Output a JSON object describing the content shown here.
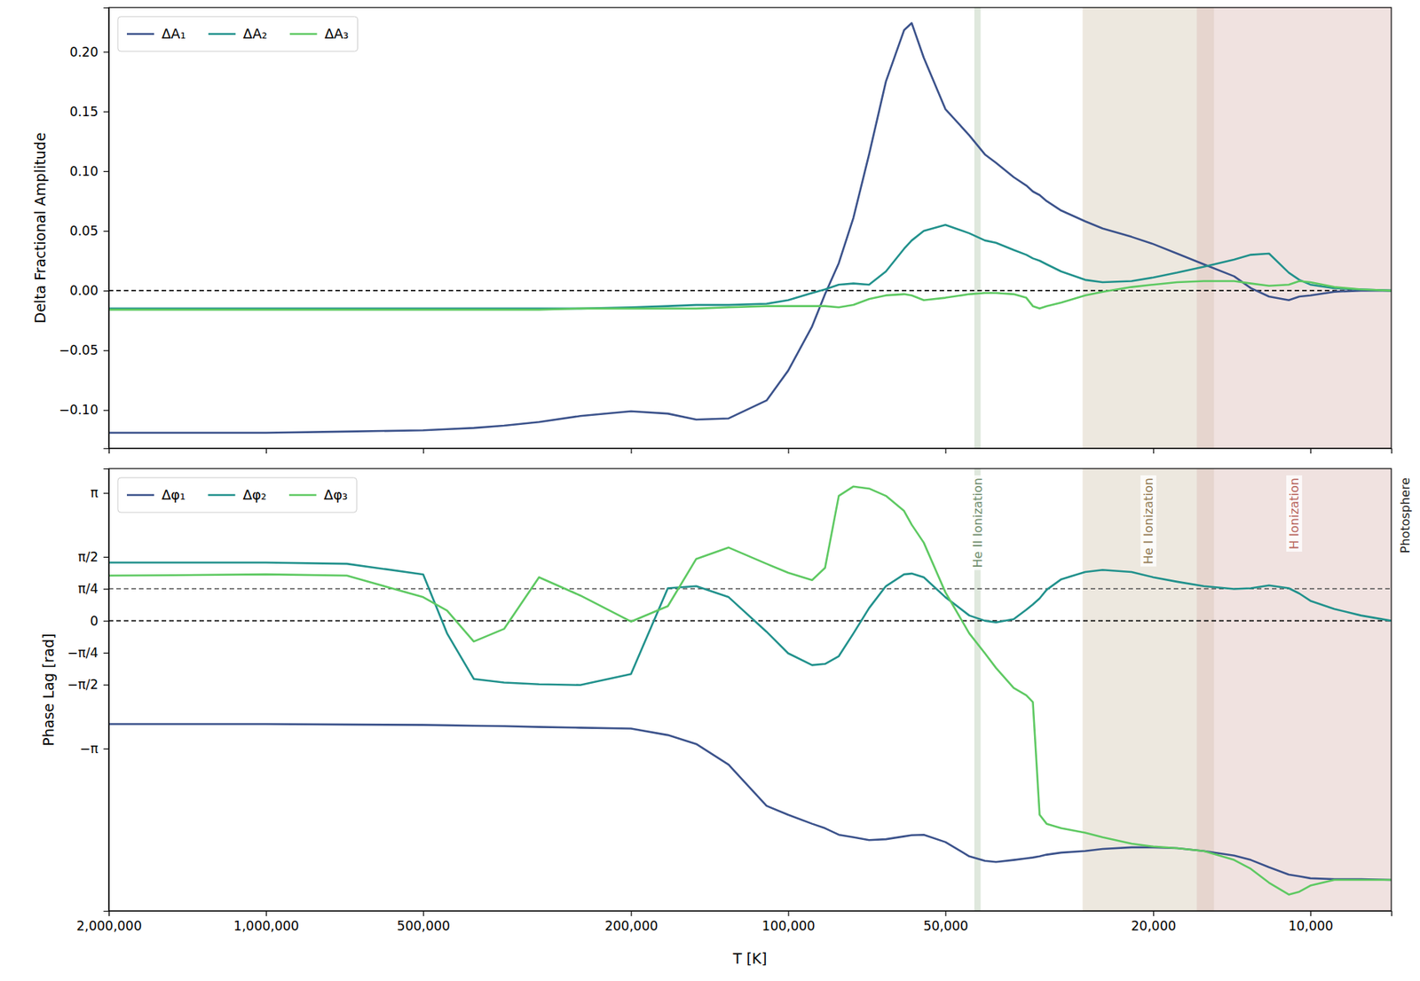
{
  "chart_data": [
    {
      "type": "line",
      "ylabel": "Delta Fractional Amplitude",
      "log": "x",
      "grid": false,
      "legend": "upper left",
      "tick_labels": "y",
      "xlim": [
        2000000,
        7000
      ],
      "xticks": [
        2000000,
        1000000,
        500000,
        200000,
        100000,
        50000,
        20000,
        10000
      ],
      "ylim": [
        -0.132,
        0.237
      ],
      "yticks": [
        {
          "value": -0.1,
          "label": "−0.10"
        },
        {
          "value": -0.05,
          "label": "−0.05"
        },
        {
          "value": 0,
          "label": "0.00"
        },
        {
          "value": 0.05,
          "label": "0.05"
        },
        {
          "value": 0.1,
          "label": "0.10"
        },
        {
          "value": 0.15,
          "label": "0.15"
        },
        {
          "value": 0.2,
          "label": "0.20"
        }
      ],
      "reference_lines": [
        0
      ],
      "regions": [
        {
          "range": [
            44000,
            42800
          ]
        },
        {
          "range": [
            27300,
            15300
          ]
        },
        {
          "range": [
            16500,
            7000
          ]
        }
      ],
      "x": [
        2000000,
        1500000,
        1000000,
        700000,
        500000,
        450000,
        400000,
        350000,
        300000,
        250000,
        200000,
        170000,
        150000,
        130000,
        110000,
        100000,
        90000,
        85000,
        80000,
        75000,
        70000,
        65000,
        60000,
        58000,
        55000,
        50000,
        45000,
        42000,
        40000,
        37000,
        35000,
        34000,
        33000,
        32000,
        30000,
        27000,
        25000,
        22000,
        20000,
        18000,
        16000,
        14000,
        13000,
        12000,
        11000,
        10500,
        10000,
        9000,
        8000,
        7000
      ],
      "series": [
        {
          "name": "ΔA₁",
          "color": "#3b528b",
          "values": [
            -0.119,
            -0.119,
            -0.119,
            -0.118,
            -0.117,
            -0.116,
            -0.115,
            -0.113,
            -0.11,
            -0.105,
            -0.101,
            -0.103,
            -0.108,
            -0.107,
            -0.092,
            -0.067,
            -0.03,
            -0.003,
            0.023,
            0.061,
            0.114,
            0.175,
            0.218,
            0.224,
            0.195,
            0.152,
            0.13,
            0.114,
            0.107,
            0.095,
            0.088,
            0.083,
            0.08,
            0.075,
            0.067,
            0.058,
            0.052,
            0.045,
            0.039,
            0.031,
            0.022,
            0.012,
            0.002,
            -0.005,
            -0.008,
            -0.005,
            -0.004,
            -0.001,
            0.0,
            0.0
          ]
        },
        {
          "name": "ΔA₂",
          "color": "#21918c",
          "values": [
            -0.015,
            -0.015,
            -0.015,
            -0.015,
            -0.015,
            -0.015,
            -0.015,
            -0.015,
            -0.015,
            -0.015,
            -0.014,
            -0.013,
            -0.012,
            -0.012,
            -0.011,
            -0.008,
            -0.002,
            0.001,
            0.005,
            0.006,
            0.005,
            0.016,
            0.035,
            0.042,
            0.05,
            0.055,
            0.048,
            0.042,
            0.04,
            0.034,
            0.03,
            0.027,
            0.025,
            0.022,
            0.016,
            0.009,
            0.007,
            0.008,
            0.011,
            0.015,
            0.02,
            0.026,
            0.03,
            0.031,
            0.015,
            0.009,
            0.005,
            0.002,
            0.001,
            0.0
          ]
        },
        {
          "name": "ΔA₃",
          "color": "#5ec962",
          "values": [
            -0.016,
            -0.016,
            -0.016,
            -0.016,
            -0.016,
            -0.016,
            -0.016,
            -0.016,
            -0.016,
            -0.015,
            -0.015,
            -0.015,
            -0.015,
            -0.014,
            -0.013,
            -0.013,
            -0.013,
            -0.013,
            -0.014,
            -0.012,
            -0.007,
            -0.004,
            -0.003,
            -0.004,
            -0.008,
            -0.006,
            -0.003,
            -0.002,
            -0.002,
            -0.003,
            -0.006,
            -0.013,
            -0.015,
            -0.013,
            -0.01,
            -0.004,
            -0.001,
            0.003,
            0.005,
            0.007,
            0.008,
            0.008,
            0.006,
            0.004,
            0.005,
            0.008,
            0.007,
            0.003,
            0.001,
            0.0
          ]
        }
      ]
    },
    {
      "type": "line",
      "xlabel": "T [K]",
      "ylabel": "Phase Lag [rad]",
      "log": "x",
      "grid": false,
      "legend": "upper left",
      "xlim": [
        2000000,
        7000
      ],
      "xticks": [
        {
          "value": 2000000,
          "label": "2,000,000"
        },
        {
          "value": 1000000,
          "label": "1,000,000"
        },
        {
          "value": 500000,
          "label": "500,000"
        },
        {
          "value": 200000,
          "label": "200,000"
        },
        {
          "value": 100000,
          "label": "100,000"
        },
        {
          "value": 50000,
          "label": "50,000"
        },
        {
          "value": 20000,
          "label": "20,000"
        },
        {
          "value": 10000,
          "label": "10,000"
        }
      ],
      "ylim": [
        -7.13,
        3.74
      ],
      "yticks": [
        {
          "value": -3.14159,
          "label": "−π"
        },
        {
          "value": -1.5708,
          "label": "−π/2"
        },
        {
          "value": -0.7854,
          "label": "−π/4"
        },
        0,
        {
          "value": 0.7854,
          "label": "π/4"
        },
        {
          "value": 1.5708,
          "label": "π/2"
        },
        {
          "value": 3.14159,
          "label": "π"
        }
      ],
      "reference_lines": [
        0,
        0.7854
      ],
      "regions": [
        {
          "label": "He II Ionization",
          "range": [
            44000,
            42800
          ]
        },
        {
          "label": "He I Ionization",
          "range": [
            27300,
            15300
          ]
        },
        {
          "label": "H Ionization",
          "range": [
            16500,
            7000
          ]
        }
      ],
      "annotations": [
        {
          "text": "Photosphere",
          "x": 7000
        }
      ],
      "x": [
        2000000,
        1500000,
        1000000,
        700000,
        500000,
        450000,
        400000,
        350000,
        300000,
        250000,
        200000,
        170000,
        150000,
        130000,
        110000,
        100000,
        90000,
        85000,
        80000,
        75000,
        70000,
        65000,
        60000,
        58000,
        55000,
        50000,
        45000,
        42000,
        40000,
        37000,
        35000,
        34000,
        33000,
        32000,
        30000,
        27000,
        25000,
        22000,
        20000,
        18000,
        16000,
        14000,
        13000,
        12000,
        11000,
        10500,
        10000,
        9000,
        8000,
        7000
      ],
      "series": [
        {
          "name": "Δφ₁",
          "color": "#3b528b",
          "values": [
            -2.54,
            -2.54,
            -2.54,
            -2.55,
            -2.56,
            -2.57,
            -2.58,
            -2.59,
            -2.61,
            -2.63,
            -2.65,
            -2.81,
            -3.03,
            -3.54,
            -4.55,
            -4.77,
            -4.99,
            -5.1,
            -5.26,
            -5.32,
            -5.39,
            -5.37,
            -5.3,
            -5.27,
            -5.26,
            -5.44,
            -5.79,
            -5.9,
            -5.93,
            -5.88,
            -5.84,
            -5.82,
            -5.79,
            -5.75,
            -5.7,
            -5.66,
            -5.61,
            -5.57,
            -5.57,
            -5.59,
            -5.66,
            -5.77,
            -5.88,
            -6.06,
            -6.24,
            -6.28,
            -6.33,
            -6.35,
            -6.35,
            -6.37
          ]
        },
        {
          "name": "Δφ₂",
          "color": "#21918c",
          "values": [
            1.43,
            1.43,
            1.43,
            1.4,
            1.14,
            -0.31,
            -1.43,
            -1.52,
            -1.56,
            -1.58,
            -1.31,
            0.8,
            0.85,
            0.58,
            -0.27,
            -0.8,
            -1.09,
            -1.06,
            -0.87,
            -0.31,
            0.31,
            0.85,
            1.14,
            1.16,
            1.07,
            0.58,
            0.13,
            0.0,
            -0.04,
            0.04,
            0.27,
            0.4,
            0.55,
            0.76,
            1.02,
            1.2,
            1.25,
            1.2,
            1.07,
            0.96,
            0.85,
            0.78,
            0.8,
            0.87,
            0.8,
            0.67,
            0.49,
            0.29,
            0.13,
            0.0
          ]
        },
        {
          "name": "Δφ₃",
          "color": "#5ec962",
          "values": [
            1.11,
            1.12,
            1.14,
            1.11,
            0.58,
            0.25,
            -0.51,
            -0.2,
            1.07,
            0.62,
            -0.02,
            0.36,
            1.52,
            1.8,
            1.4,
            1.18,
            1.0,
            1.3,
            3.07,
            3.3,
            3.25,
            3.07,
            2.7,
            2.36,
            1.92,
            0.7,
            -0.31,
            -0.8,
            -1.16,
            -1.65,
            -1.83,
            -2.0,
            -4.77,
            -4.99,
            -5.1,
            -5.21,
            -5.32,
            -5.48,
            -5.55,
            -5.59,
            -5.66,
            -5.88,
            -6.1,
            -6.44,
            -6.73,
            -6.66,
            -6.51,
            -6.37,
            -6.37,
            -6.37
          ]
        }
      ]
    }
  ]
}
